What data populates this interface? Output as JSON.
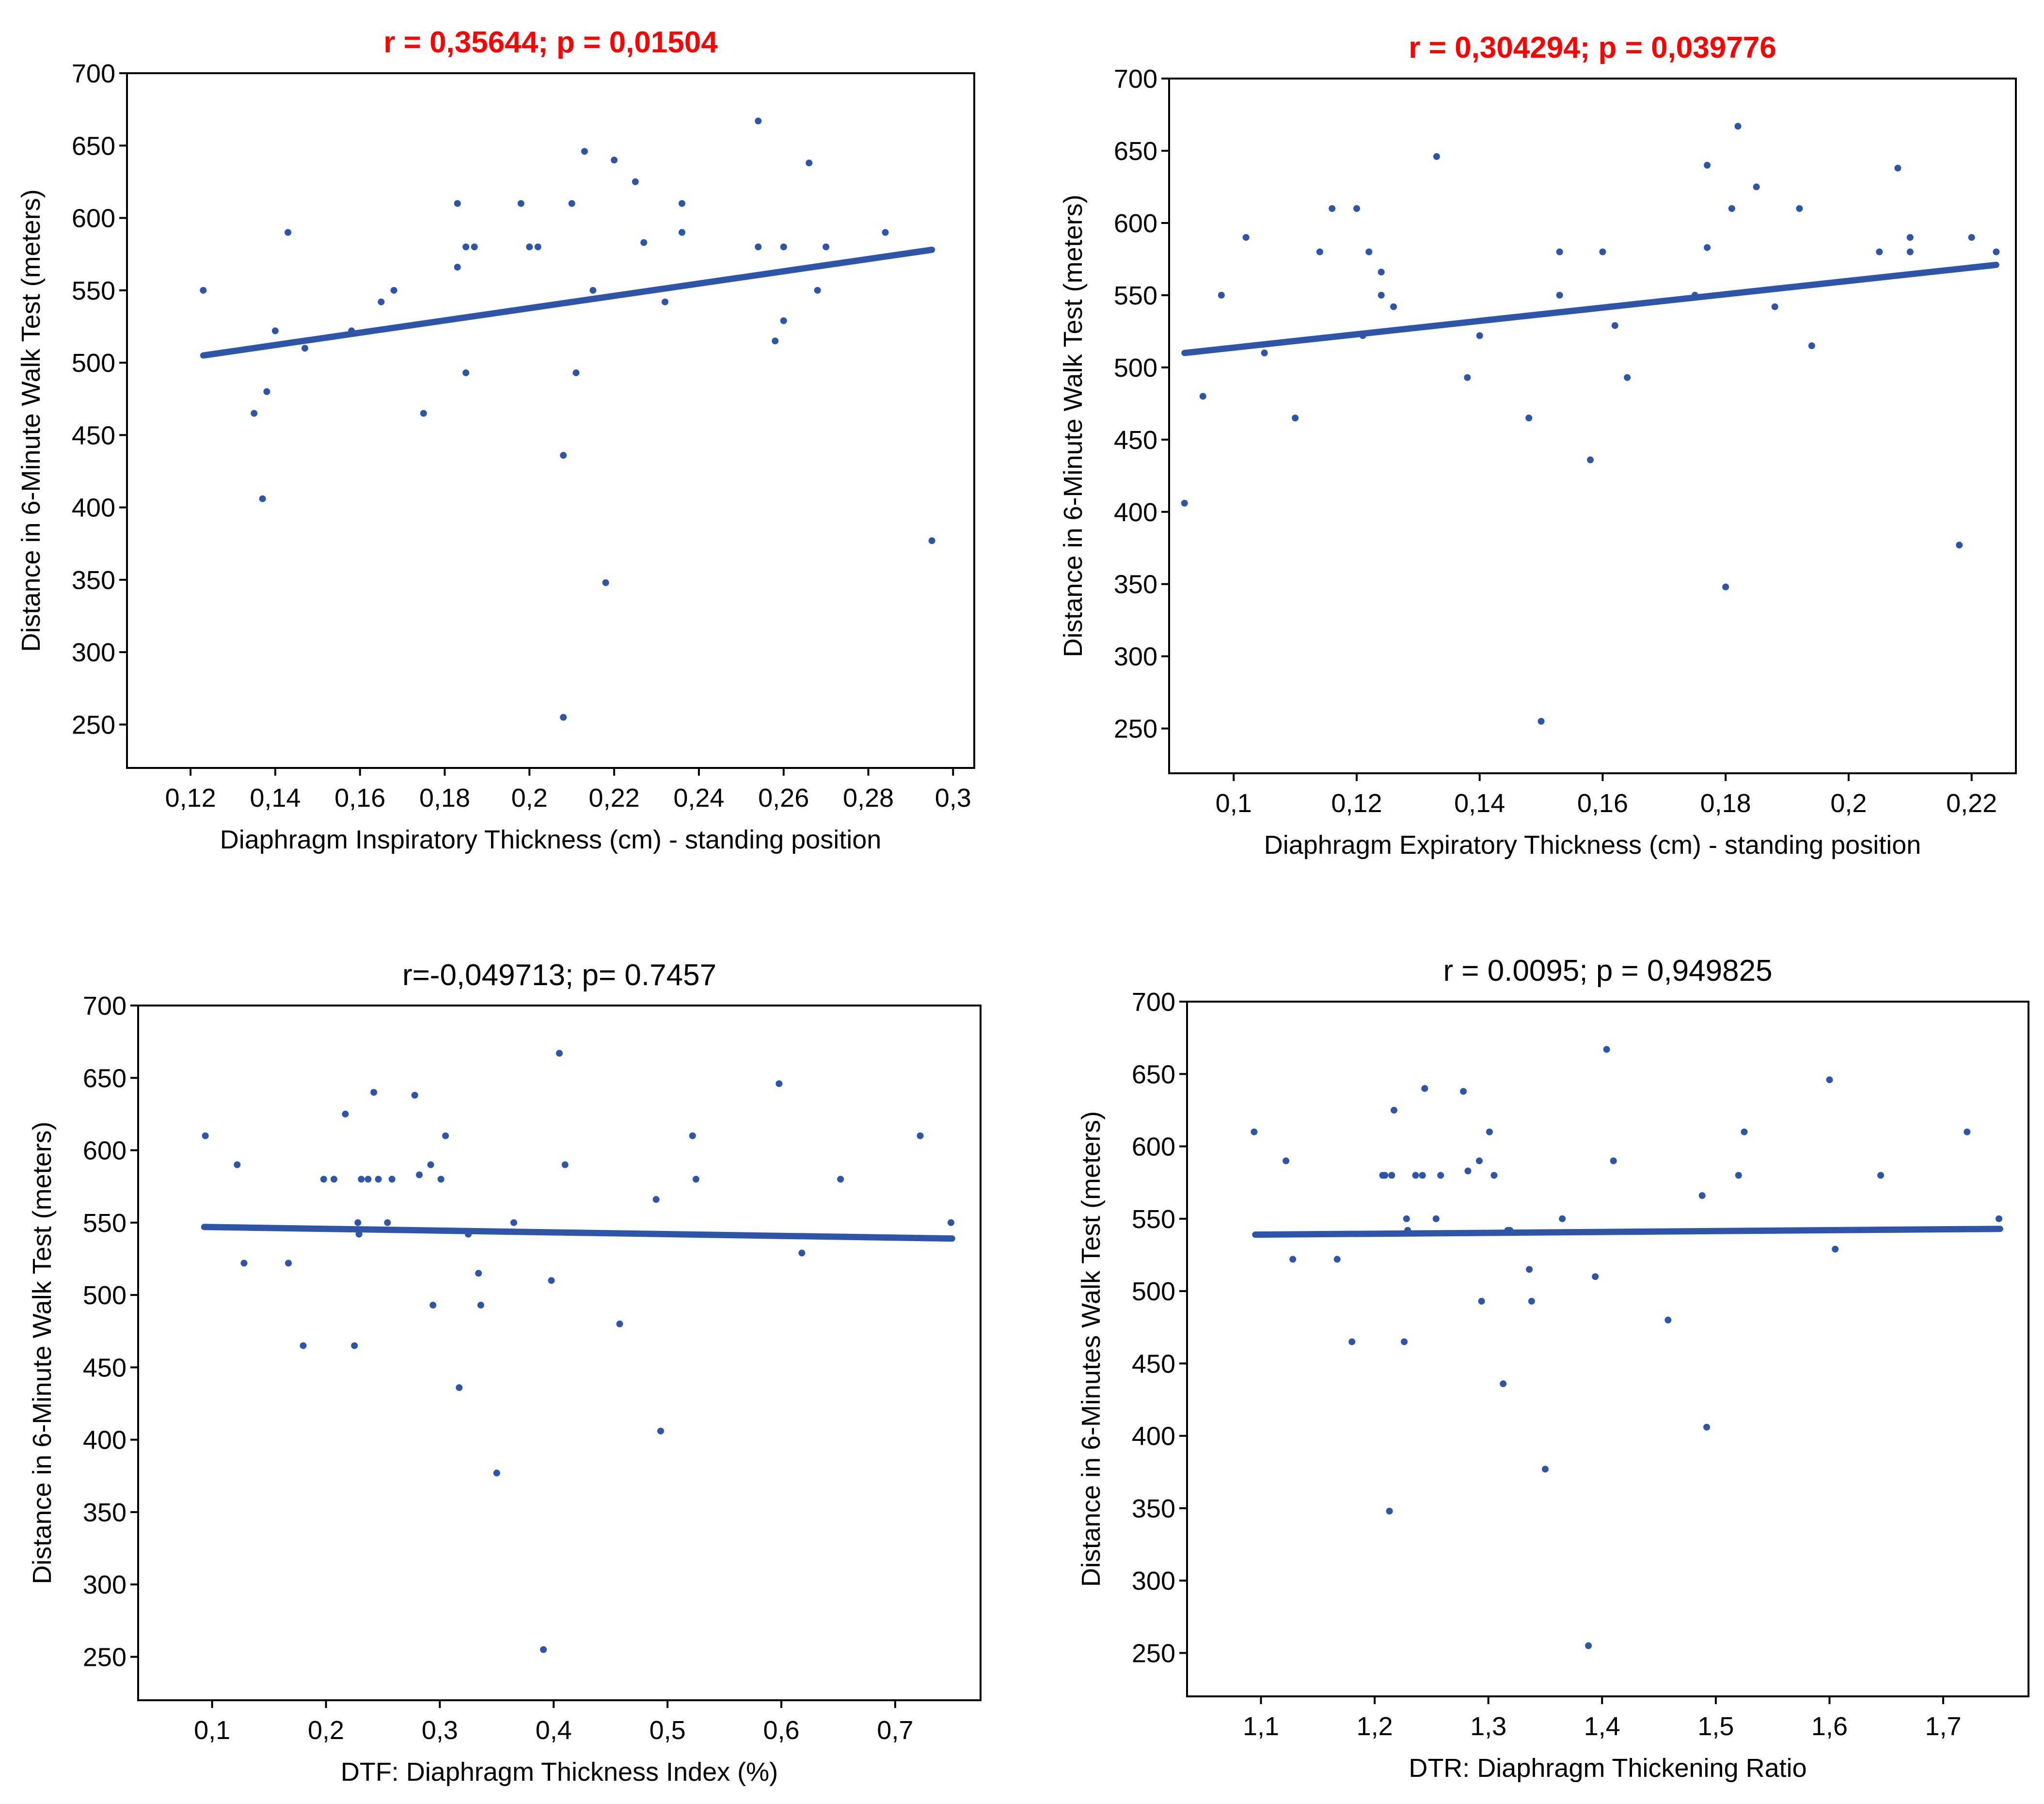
{
  "colors": {
    "points": "#2f55a8",
    "line": "#2f55a8",
    "title_significant": "#ff0000",
    "title_default": "#000000"
  },
  "chart_data": [
    {
      "type": "scatter",
      "title": "r = 0,35644; p = 0,01504",
      "title_significant": true,
      "xlabel": "Diaphragm Inspiratory Thickness (cm) - standing position",
      "ylabel": "Distance in 6-Minute Walk Test (meters)",
      "xlim": [
        0.105,
        0.305
      ],
      "ylim": [
        220,
        700
      ],
      "xticks": [
        0.12,
        0.14,
        0.16,
        0.18,
        0.2,
        0.22,
        0.24,
        0.26,
        0.28,
        0.3
      ],
      "xtick_labels": [
        "0,12",
        "0,14",
        "0,16",
        "0,18",
        "0,2",
        "0,22",
        "0,24",
        "0,26",
        "0,28",
        "0,3"
      ],
      "yticks": [
        250,
        300,
        350,
        400,
        450,
        500,
        550,
        600,
        650,
        700
      ],
      "ytick_labels": [
        "250",
        "300",
        "350",
        "400",
        "450",
        "500",
        "550",
        "600",
        "650",
        "700"
      ],
      "regression": {
        "x": [
          0.123,
          0.295
        ],
        "y": [
          505,
          578
        ]
      },
      "x": [
        0.123,
        0.135,
        0.137,
        0.138,
        0.14,
        0.143,
        0.147,
        0.158,
        0.165,
        0.168,
        0.175,
        0.183,
        0.183,
        0.185,
        0.185,
        0.187,
        0.198,
        0.2,
        0.202,
        0.208,
        0.208,
        0.21,
        0.211,
        0.213,
        0.215,
        0.218,
        0.22,
        0.225,
        0.227,
        0.232,
        0.236,
        0.236,
        0.254,
        0.254,
        0.258,
        0.26,
        0.26,
        0.266,
        0.268,
        0.27,
        0.284,
        0.295
      ],
      "y": [
        550,
        465,
        406,
        480,
        522,
        590,
        510,
        522,
        542,
        550,
        465,
        610,
        566,
        493,
        580,
        580,
        610,
        580,
        580,
        436,
        255,
        610,
        493,
        646,
        550,
        348,
        640,
        625,
        583,
        542,
        590,
        610,
        580,
        667,
        515,
        580,
        529,
        638,
        550,
        580,
        590,
        377
      ]
    },
    {
      "type": "scatter",
      "title": "r = 0,304294; p = 0,039776",
      "title_significant": true,
      "xlabel": "Diaphragm Expiratory Thickness (cm) - standing position",
      "ylabel": "Distance in 6-Minute Walk Test (meters)",
      "xlim": [
        0.0895,
        0.2272
      ],
      "ylim": [
        219,
        700
      ],
      "xticks": [
        0.1,
        0.12,
        0.14,
        0.16,
        0.18,
        0.2,
        0.22
      ],
      "xtick_labels": [
        "0,1",
        "0,12",
        "0,14",
        "0,16",
        "0,18",
        "0,2",
        "0,22"
      ],
      "yticks": [
        250,
        300,
        350,
        400,
        450,
        500,
        550,
        600,
        650,
        700
      ],
      "ytick_labels": [
        "250",
        "300",
        "350",
        "400",
        "450",
        "500",
        "550",
        "600",
        "650",
        "700"
      ],
      "regression": {
        "x": [
          0.092,
          0.224
        ],
        "y": [
          510,
          571
        ]
      },
      "x": [
        0.092,
        0.095,
        0.098,
        0.102,
        0.105,
        0.11,
        0.114,
        0.116,
        0.12,
        0.121,
        0.122,
        0.124,
        0.124,
        0.126,
        0.133,
        0.138,
        0.14,
        0.148,
        0.15,
        0.153,
        0.153,
        0.158,
        0.16,
        0.162,
        0.164,
        0.175,
        0.177,
        0.177,
        0.18,
        0.181,
        0.182,
        0.185,
        0.188,
        0.192,
        0.194,
        0.205,
        0.208,
        0.21,
        0.21,
        0.218,
        0.22,
        0.224
      ],
      "y": [
        406,
        480,
        550,
        590,
        510,
        465,
        580,
        610,
        610,
        522,
        580,
        566,
        550,
        542,
        646,
        493,
        522,
        465,
        255,
        580,
        550,
        436,
        580,
        529,
        493,
        550,
        640,
        583,
        348,
        610,
        667,
        625,
        542,
        610,
        515,
        580,
        638,
        580,
        590,
        377,
        590,
        580
      ]
    },
    {
      "type": "scatter",
      "title": "r=-0,049713; p= 0.7457",
      "title_significant": false,
      "xlabel": "DTF: Diaphragm Thickness Index (%)",
      "ylabel": "Distance in 6-Minute Walk Test (meters)",
      "xlim": [
        0.035,
        0.775
      ],
      "ylim": [
        220,
        700
      ],
      "xticks": [
        0.1,
        0.2,
        0.3,
        0.4,
        0.5,
        0.6,
        0.7
      ],
      "xtick_labels": [
        "0,1",
        "0,2",
        "0,3",
        "0,4",
        "0,5",
        "0,6",
        "0,7"
      ],
      "yticks": [
        250,
        300,
        350,
        400,
        450,
        500,
        550,
        600,
        650,
        700
      ],
      "ytick_labels": [
        "250",
        "300",
        "350",
        "400",
        "450",
        "500",
        "550",
        "600",
        "650",
        "700"
      ],
      "regression": {
        "x": [
          0.093,
          0.75
        ],
        "y": [
          547,
          539
        ]
      },
      "x": [
        0.094,
        0.122,
        0.128,
        0.167,
        0.18,
        0.198,
        0.207,
        0.217,
        0.225,
        0.228,
        0.229,
        0.231,
        0.237,
        0.242,
        0.246,
        0.254,
        0.258,
        0.278,
        0.282,
        0.292,
        0.294,
        0.301,
        0.305,
        0.317,
        0.325,
        0.334,
        0.336,
        0.35,
        0.365,
        0.391,
        0.398,
        0.405,
        0.41,
        0.458,
        0.49,
        0.494,
        0.522,
        0.525,
        0.598,
        0.618,
        0.652,
        0.722,
        0.749
      ],
      "y": [
        610,
        590,
        522,
        522,
        465,
        580,
        580,
        625,
        465,
        550,
        542,
        580,
        580,
        640,
        580,
        550,
        580,
        638,
        583,
        590,
        493,
        580,
        610,
        436,
        542,
        515,
        493,
        377,
        550,
        255,
        510,
        667,
        590,
        480,
        566,
        406,
        610,
        580,
        646,
        529,
        580,
        610,
        550
      ]
    },
    {
      "type": "scatter",
      "title": "r = 0.0095; p = 0,949825",
      "title_significant": false,
      "xlabel": "DTR: Diaphragm Thickening Ratio",
      "ylabel": "Distance in 6-Minutes Walk Test (meters)",
      "xlim": [
        1.035,
        1.775
      ],
      "ylim": [
        220,
        700
      ],
      "xticks": [
        1.1,
        1.2,
        1.3,
        1.4,
        1.5,
        1.6,
        1.7
      ],
      "xtick_labels": [
        "1,1",
        "1,2",
        "1,3",
        "1,4",
        "1,5",
        "1,6",
        "1,7"
      ],
      "yticks": [
        250,
        300,
        350,
        400,
        450,
        500,
        550,
        600,
        650,
        700
      ],
      "ytick_labels": [
        "250",
        "300",
        "350",
        "400",
        "450",
        "500",
        "550",
        "600",
        "650",
        "700"
      ],
      "regression": {
        "x": [
          1.095,
          1.75
        ],
        "y": [
          539,
          543
        ]
      },
      "x": [
        1.094,
        1.122,
        1.128,
        1.167,
        1.18,
        1.207,
        1.209,
        1.213,
        1.215,
        1.217,
        1.226,
        1.228,
        1.229,
        1.236,
        1.242,
        1.244,
        1.254,
        1.258,
        1.278,
        1.282,
        1.292,
        1.294,
        1.301,
        1.305,
        1.313,
        1.317,
        1.319,
        1.336,
        1.338,
        1.35,
        1.365,
        1.388,
        1.394,
        1.404,
        1.41,
        1.458,
        1.488,
        1.492,
        1.52,
        1.525,
        1.6,
        1.605,
        1.645,
        1.721,
        1.749
      ],
      "y": [
        610,
        590,
        522,
        522,
        465,
        580,
        580,
        348,
        580,
        625,
        465,
        550,
        542,
        580,
        580,
        640,
        550,
        580,
        638,
        583,
        590,
        493,
        610,
        580,
        436,
        542,
        542,
        515,
        493,
        377,
        550,
        255,
        510,
        667,
        590,
        480,
        566,
        406,
        580,
        610,
        646,
        529,
        580,
        610,
        550
      ]
    }
  ]
}
